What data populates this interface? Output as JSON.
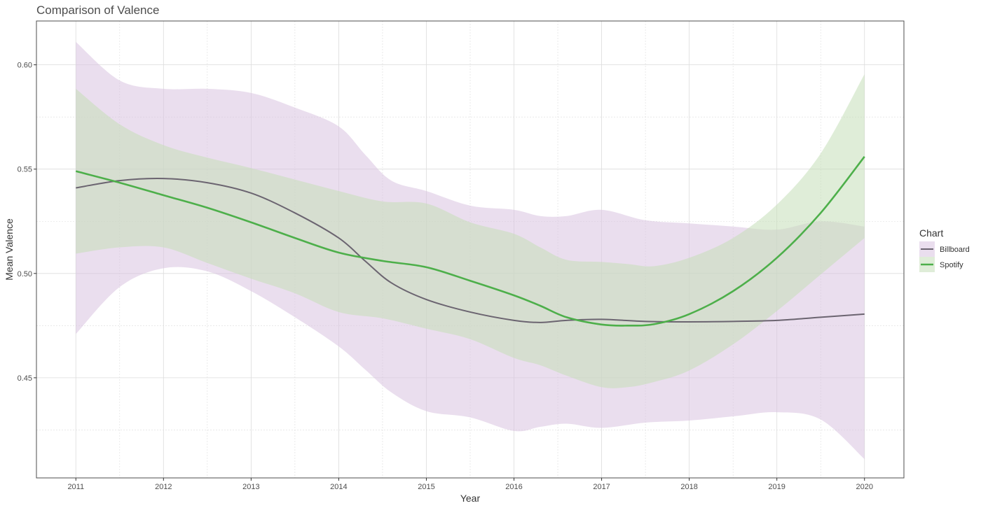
{
  "chart_data": {
    "type": "line",
    "title": "Comparison of Valence",
    "xlabel": "Year",
    "ylabel": "Mean Valence",
    "xlim": [
      2010.55,
      2020.45
    ],
    "ylim": [
      0.402,
      0.621
    ],
    "x_ticks": [
      2011,
      2012,
      2013,
      2014,
      2015,
      2016,
      2017,
      2018,
      2019,
      2020
    ],
    "y_ticks": [
      0.45,
      0.5,
      0.55,
      0.6
    ],
    "y_tick_labels": [
      "0.45",
      "0.50",
      "0.55",
      "0.60"
    ],
    "grid": "major and minor",
    "legend": {
      "title": "Chart",
      "position": "right"
    },
    "series": [
      {
        "name": "Billboard",
        "color": "#6b6470",
        "band_color": "#d9c2e0",
        "x": [
          2011,
          2011.5,
          2012,
          2012.5,
          2013,
          2013.5,
          2014,
          2014.3,
          2014.6,
          2015,
          2015.5,
          2016,
          2016.3,
          2016.6,
          2017,
          2017.5,
          2018,
          2018.5,
          2019,
          2019.5,
          2020
        ],
        "values": [
          0.541,
          0.5445,
          0.5455,
          0.5435,
          0.5385,
          0.529,
          0.517,
          0.506,
          0.4955,
          0.4875,
          0.4815,
          0.4775,
          0.4765,
          0.4775,
          0.478,
          0.477,
          0.4768,
          0.477,
          0.4775,
          0.479,
          0.4805
        ],
        "lower": [
          0.471,
          0.4935,
          0.5025,
          0.501,
          0.4915,
          0.479,
          0.465,
          0.454,
          0.443,
          0.434,
          0.431,
          0.4245,
          0.4265,
          0.428,
          0.426,
          0.4285,
          0.4295,
          0.4315,
          0.4335,
          0.43,
          0.411
        ],
        "upper": [
          0.611,
          0.5925,
          0.5885,
          0.5885,
          0.5865,
          0.5795,
          0.5705,
          0.557,
          0.5445,
          0.5395,
          0.5325,
          0.5305,
          0.5275,
          0.5275,
          0.5305,
          0.5255,
          0.524,
          0.5225,
          0.521,
          0.525,
          0.5225
        ]
      },
      {
        "name": "Spotify",
        "color": "#4daf4a",
        "band_color": "#c5deb8",
        "x": [
          2011,
          2011.5,
          2012,
          2012.5,
          2013,
          2013.5,
          2014,
          2014.5,
          2015,
          2015.5,
          2016,
          2016.3,
          2016.6,
          2017,
          2017.3,
          2017.6,
          2018,
          2018.5,
          2019,
          2019.5,
          2020
        ],
        "values": [
          0.549,
          0.5435,
          0.5375,
          0.5315,
          0.5245,
          0.517,
          0.51,
          0.506,
          0.503,
          0.4965,
          0.4895,
          0.4845,
          0.479,
          0.4755,
          0.475,
          0.4757,
          0.4805,
          0.4915,
          0.5075,
          0.529,
          0.556
        ],
        "lower": [
          0.5095,
          0.5125,
          0.5125,
          0.505,
          0.4975,
          0.4905,
          0.4815,
          0.4785,
          0.4735,
          0.4685,
          0.4595,
          0.456,
          0.451,
          0.4455,
          0.4455,
          0.448,
          0.4535,
          0.466,
          0.482,
          0.4995,
          0.517
        ],
        "upper": [
          0.5885,
          0.5715,
          0.5615,
          0.5555,
          0.5505,
          0.545,
          0.5395,
          0.5345,
          0.5335,
          0.5245,
          0.519,
          0.5125,
          0.5065,
          0.5055,
          0.5045,
          0.5035,
          0.5075,
          0.517,
          0.533,
          0.5575,
          0.5955
        ]
      }
    ]
  }
}
